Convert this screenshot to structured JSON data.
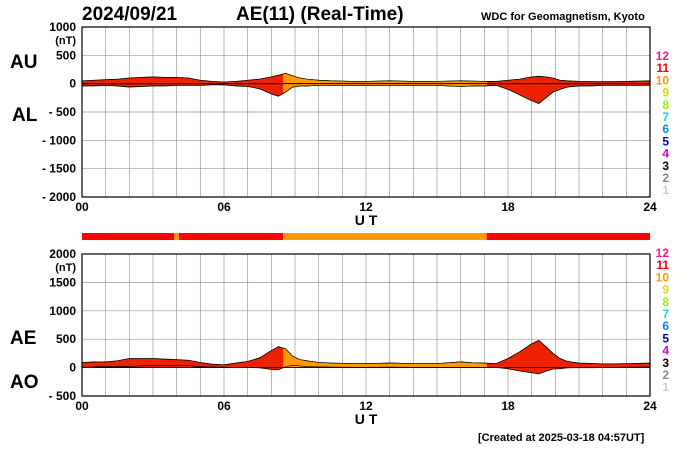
{
  "header": {
    "date": "2024/09/21",
    "title": "AE(11) (Real-Time)",
    "institution": "WDC for Geomagnetism, Kyoto"
  },
  "footer": {
    "created": "[Created at 2025-03-18 04:57UT]"
  },
  "labels": {
    "au": "AU",
    "al": "AL",
    "ae": "AE",
    "ao": "AO"
  },
  "colors": {
    "fill_main": "#ee2200",
    "fill_alt": "#ff9900",
    "frame": "#000000",
    "grid": "#999999",
    "station_count_colors": {
      "12": "#ff1493",
      "11": "#ff0000",
      "10": "#ff9900",
      "9": "#dddd00",
      "8": "#99ee00",
      "7": "#00dddd",
      "6": "#0088ff",
      "5": "#0000cc",
      "4": "#cc00cc",
      "3": "#000000",
      "2": "#888888",
      "1": "#cccccc"
    }
  },
  "chart_data": [
    {
      "type": "area",
      "panel": "AU/AL",
      "unit_label": "(nT)",
      "ylim": [
        -2000,
        1000
      ],
      "yticks": [
        "1000",
        "500",
        "0",
        "- 500",
        "- 1000",
        "- 1500",
        "- 2000"
      ],
      "xlim": [
        0,
        24
      ],
      "xticks": [
        "00",
        "06",
        "12",
        "18",
        "24"
      ],
      "xlabel": "U T",
      "grid": true,
      "station_count_legend": [
        "12",
        "11",
        "10",
        "9",
        "8",
        "7",
        "6",
        "5",
        "4",
        "3",
        "2",
        "1"
      ],
      "x": [
        0,
        0.5,
        1,
        1.5,
        2,
        2.5,
        3,
        3.5,
        4,
        4.5,
        5,
        5.5,
        6,
        6.5,
        7,
        7.5,
        8,
        8.3,
        8.6,
        8.9,
        9.2,
        9.5,
        10,
        10.5,
        11,
        11.5,
        12,
        12.5,
        13,
        13.5,
        14,
        14.5,
        15,
        15.5,
        16,
        16.5,
        17,
        17.5,
        18,
        18.5,
        19,
        19.3,
        19.6,
        19.9,
        20.2,
        20.5,
        21,
        21.5,
        22,
        22.5,
        23,
        23.5,
        24
      ],
      "series": [
        {
          "name": "AU",
          "values": [
            50,
            60,
            70,
            80,
            100,
            110,
            120,
            110,
            110,
            100,
            60,
            40,
            30,
            40,
            60,
            80,
            120,
            150,
            180,
            140,
            100,
            80,
            60,
            50,
            45,
            40,
            40,
            45,
            50,
            45,
            40,
            40,
            40,
            45,
            50,
            45,
            40,
            40,
            60,
            80,
            120,
            130,
            120,
            100,
            60,
            50,
            40,
            35,
            35,
            35,
            40,
            45,
            50
          ]
        },
        {
          "name": "AL",
          "values": [
            -40,
            -40,
            -30,
            -40,
            -60,
            -50,
            -40,
            -40,
            -30,
            -30,
            -30,
            -20,
            -20,
            -40,
            -50,
            -90,
            -180,
            -220,
            -150,
            -60,
            -40,
            -40,
            -30,
            -30,
            -30,
            -30,
            -30,
            -30,
            -30,
            -30,
            -30,
            -30,
            -30,
            -40,
            -50,
            -40,
            -40,
            -30,
            -100,
            -200,
            -300,
            -350,
            -250,
            -150,
            -100,
            -60,
            -40,
            -40,
            -30,
            -30,
            -30,
            -30,
            -30
          ]
        }
      ],
      "station_count_segments": [
        {
          "start": 0,
          "end": 3.9,
          "count": "11"
        },
        {
          "start": 3.9,
          "end": 4.1,
          "count": "10"
        },
        {
          "start": 4.1,
          "end": 8.5,
          "count": "11"
        },
        {
          "start": 8.5,
          "end": 17.1,
          "count": "10"
        },
        {
          "start": 17.1,
          "end": 24,
          "count": "11"
        }
      ]
    },
    {
      "type": "area",
      "panel": "AE/AO",
      "unit_label": "(nT)",
      "ylim": [
        -500,
        2000
      ],
      "yticks": [
        "2000",
        "1500",
        "1000",
        "500",
        "0",
        "- 500"
      ],
      "xlim": [
        0,
        24
      ],
      "xticks": [
        "00",
        "06",
        "12",
        "18",
        "24"
      ],
      "xlabel": "U T",
      "grid": true,
      "station_count_legend": [
        "12",
        "11",
        "10",
        "9",
        "8",
        "7",
        "6",
        "5",
        "4",
        "3",
        "2",
        "1"
      ],
      "x": [
        0,
        0.5,
        1,
        1.5,
        2,
        2.5,
        3,
        3.5,
        4,
        4.5,
        5,
        5.5,
        6,
        6.5,
        7,
        7.5,
        8,
        8.3,
        8.6,
        8.9,
        9.2,
        9.5,
        10,
        10.5,
        11,
        11.5,
        12,
        12.5,
        13,
        13.5,
        14,
        14.5,
        15,
        15.5,
        16,
        16.5,
        17,
        17.5,
        18,
        18.5,
        19,
        19.3,
        19.6,
        19.9,
        20.2,
        20.5,
        21,
        21.5,
        22,
        22.5,
        23,
        23.5,
        24
      ],
      "series": [
        {
          "name": "AE",
          "values": [
            90,
            100,
            100,
            120,
            160,
            160,
            160,
            150,
            140,
            130,
            90,
            60,
            50,
            80,
            110,
            170,
            300,
            370,
            330,
            200,
            140,
            120,
            90,
            80,
            75,
            70,
            70,
            75,
            80,
            75,
            70,
            70,
            70,
            85,
            100,
            85,
            80,
            70,
            160,
            280,
            420,
            480,
            370,
            250,
            160,
            110,
            80,
            75,
            65,
            65,
            70,
            75,
            80
          ]
        },
        {
          "name": "AO",
          "values": [
            5,
            10,
            20,
            20,
            20,
            30,
            40,
            35,
            40,
            35,
            15,
            10,
            5,
            0,
            5,
            -5,
            -30,
            -35,
            15,
            40,
            30,
            20,
            15,
            10,
            8,
            5,
            5,
            8,
            10,
            8,
            5,
            5,
            5,
            3,
            0,
            3,
            0,
            5,
            -20,
            -60,
            -90,
            -110,
            -65,
            -25,
            -20,
            -5,
            0,
            -3,
            3,
            3,
            5,
            8,
            10
          ]
        }
      ]
    }
  ]
}
